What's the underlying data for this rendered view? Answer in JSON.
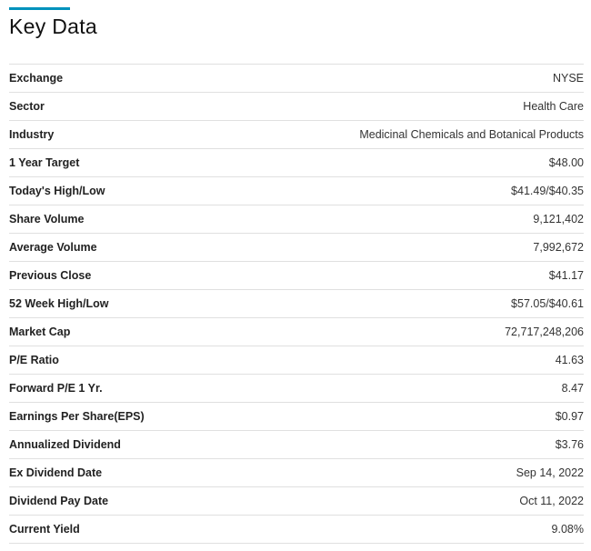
{
  "title": "Key Data",
  "accent_color": "#0092bc",
  "rows": [
    {
      "label": "Exchange",
      "value": "NYSE"
    },
    {
      "label": "Sector",
      "value": "Health Care"
    },
    {
      "label": "Industry",
      "value": "Medicinal Chemicals and Botanical Products"
    },
    {
      "label": "1 Year Target",
      "value": "$48.00"
    },
    {
      "label": "Today's High/Low",
      "value": "$41.49/$40.35"
    },
    {
      "label": "Share Volume",
      "value": "9,121,402"
    },
    {
      "label": "Average Volume",
      "value": "7,992,672"
    },
    {
      "label": "Previous Close",
      "value": "$41.17"
    },
    {
      "label": "52 Week High/Low",
      "value": "$57.05/$40.61"
    },
    {
      "label": "Market Cap",
      "value": "72,717,248,206"
    },
    {
      "label": "P/E Ratio",
      "value": "41.63"
    },
    {
      "label": "Forward P/E 1 Yr.",
      "value": "8.47"
    },
    {
      "label": "Earnings Per Share(EPS)",
      "value": "$0.97"
    },
    {
      "label": "Annualized Dividend",
      "value": "$3.76"
    },
    {
      "label": "Ex Dividend Date",
      "value": "Sep 14, 2022"
    },
    {
      "label": "Dividend Pay Date",
      "value": "Oct 11, 2022"
    },
    {
      "label": "Current Yield",
      "value": "9.08%"
    }
  ]
}
